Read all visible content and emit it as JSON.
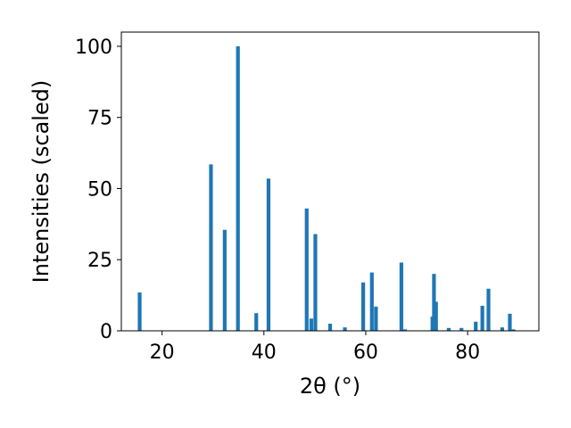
{
  "chart_data": {
    "type": "bar",
    "xlabel": "2θ (°)",
    "ylabel": "Intensities (scaled)",
    "xlim": [
      12,
      94
    ],
    "ylim": [
      0,
      105
    ],
    "xticks": [
      20,
      40,
      60,
      80
    ],
    "yticks": [
      0,
      25,
      50,
      75,
      100
    ],
    "grid": false,
    "color": "#1f77b4",
    "points": [
      {
        "x": 15.6,
        "y": 13.5
      },
      {
        "x": 29.6,
        "y": 58.5
      },
      {
        "x": 32.3,
        "y": 35.5
      },
      {
        "x": 34.9,
        "y": 100
      },
      {
        "x": 38.5,
        "y": 6.2
      },
      {
        "x": 40.9,
        "y": 53.5
      },
      {
        "x": 48.4,
        "y": 43
      },
      {
        "x": 49.3,
        "y": 4.3
      },
      {
        "x": 50.1,
        "y": 34
      },
      {
        "x": 53.0,
        "y": 2.5
      },
      {
        "x": 55.9,
        "y": 1.2
      },
      {
        "x": 59.5,
        "y": 17
      },
      {
        "x": 61.2,
        "y": 20.5
      },
      {
        "x": 62.0,
        "y": 8.5
      },
      {
        "x": 67.0,
        "y": 24
      },
      {
        "x": 67.7,
        "y": 0.5
      },
      {
        "x": 73.1,
        "y": 5
      },
      {
        "x": 73.4,
        "y": 20
      },
      {
        "x": 73.8,
        "y": 10.2
      },
      {
        "x": 76.3,
        "y": 1
      },
      {
        "x": 78.8,
        "y": 1
      },
      {
        "x": 81.6,
        "y": 3.2
      },
      {
        "x": 82.9,
        "y": 8.8
      },
      {
        "x": 84.1,
        "y": 14.8
      },
      {
        "x": 86.8,
        "y": 1.2
      },
      {
        "x": 88.3,
        "y": 6
      },
      {
        "x": 89.0,
        "y": 0.5
      }
    ]
  }
}
